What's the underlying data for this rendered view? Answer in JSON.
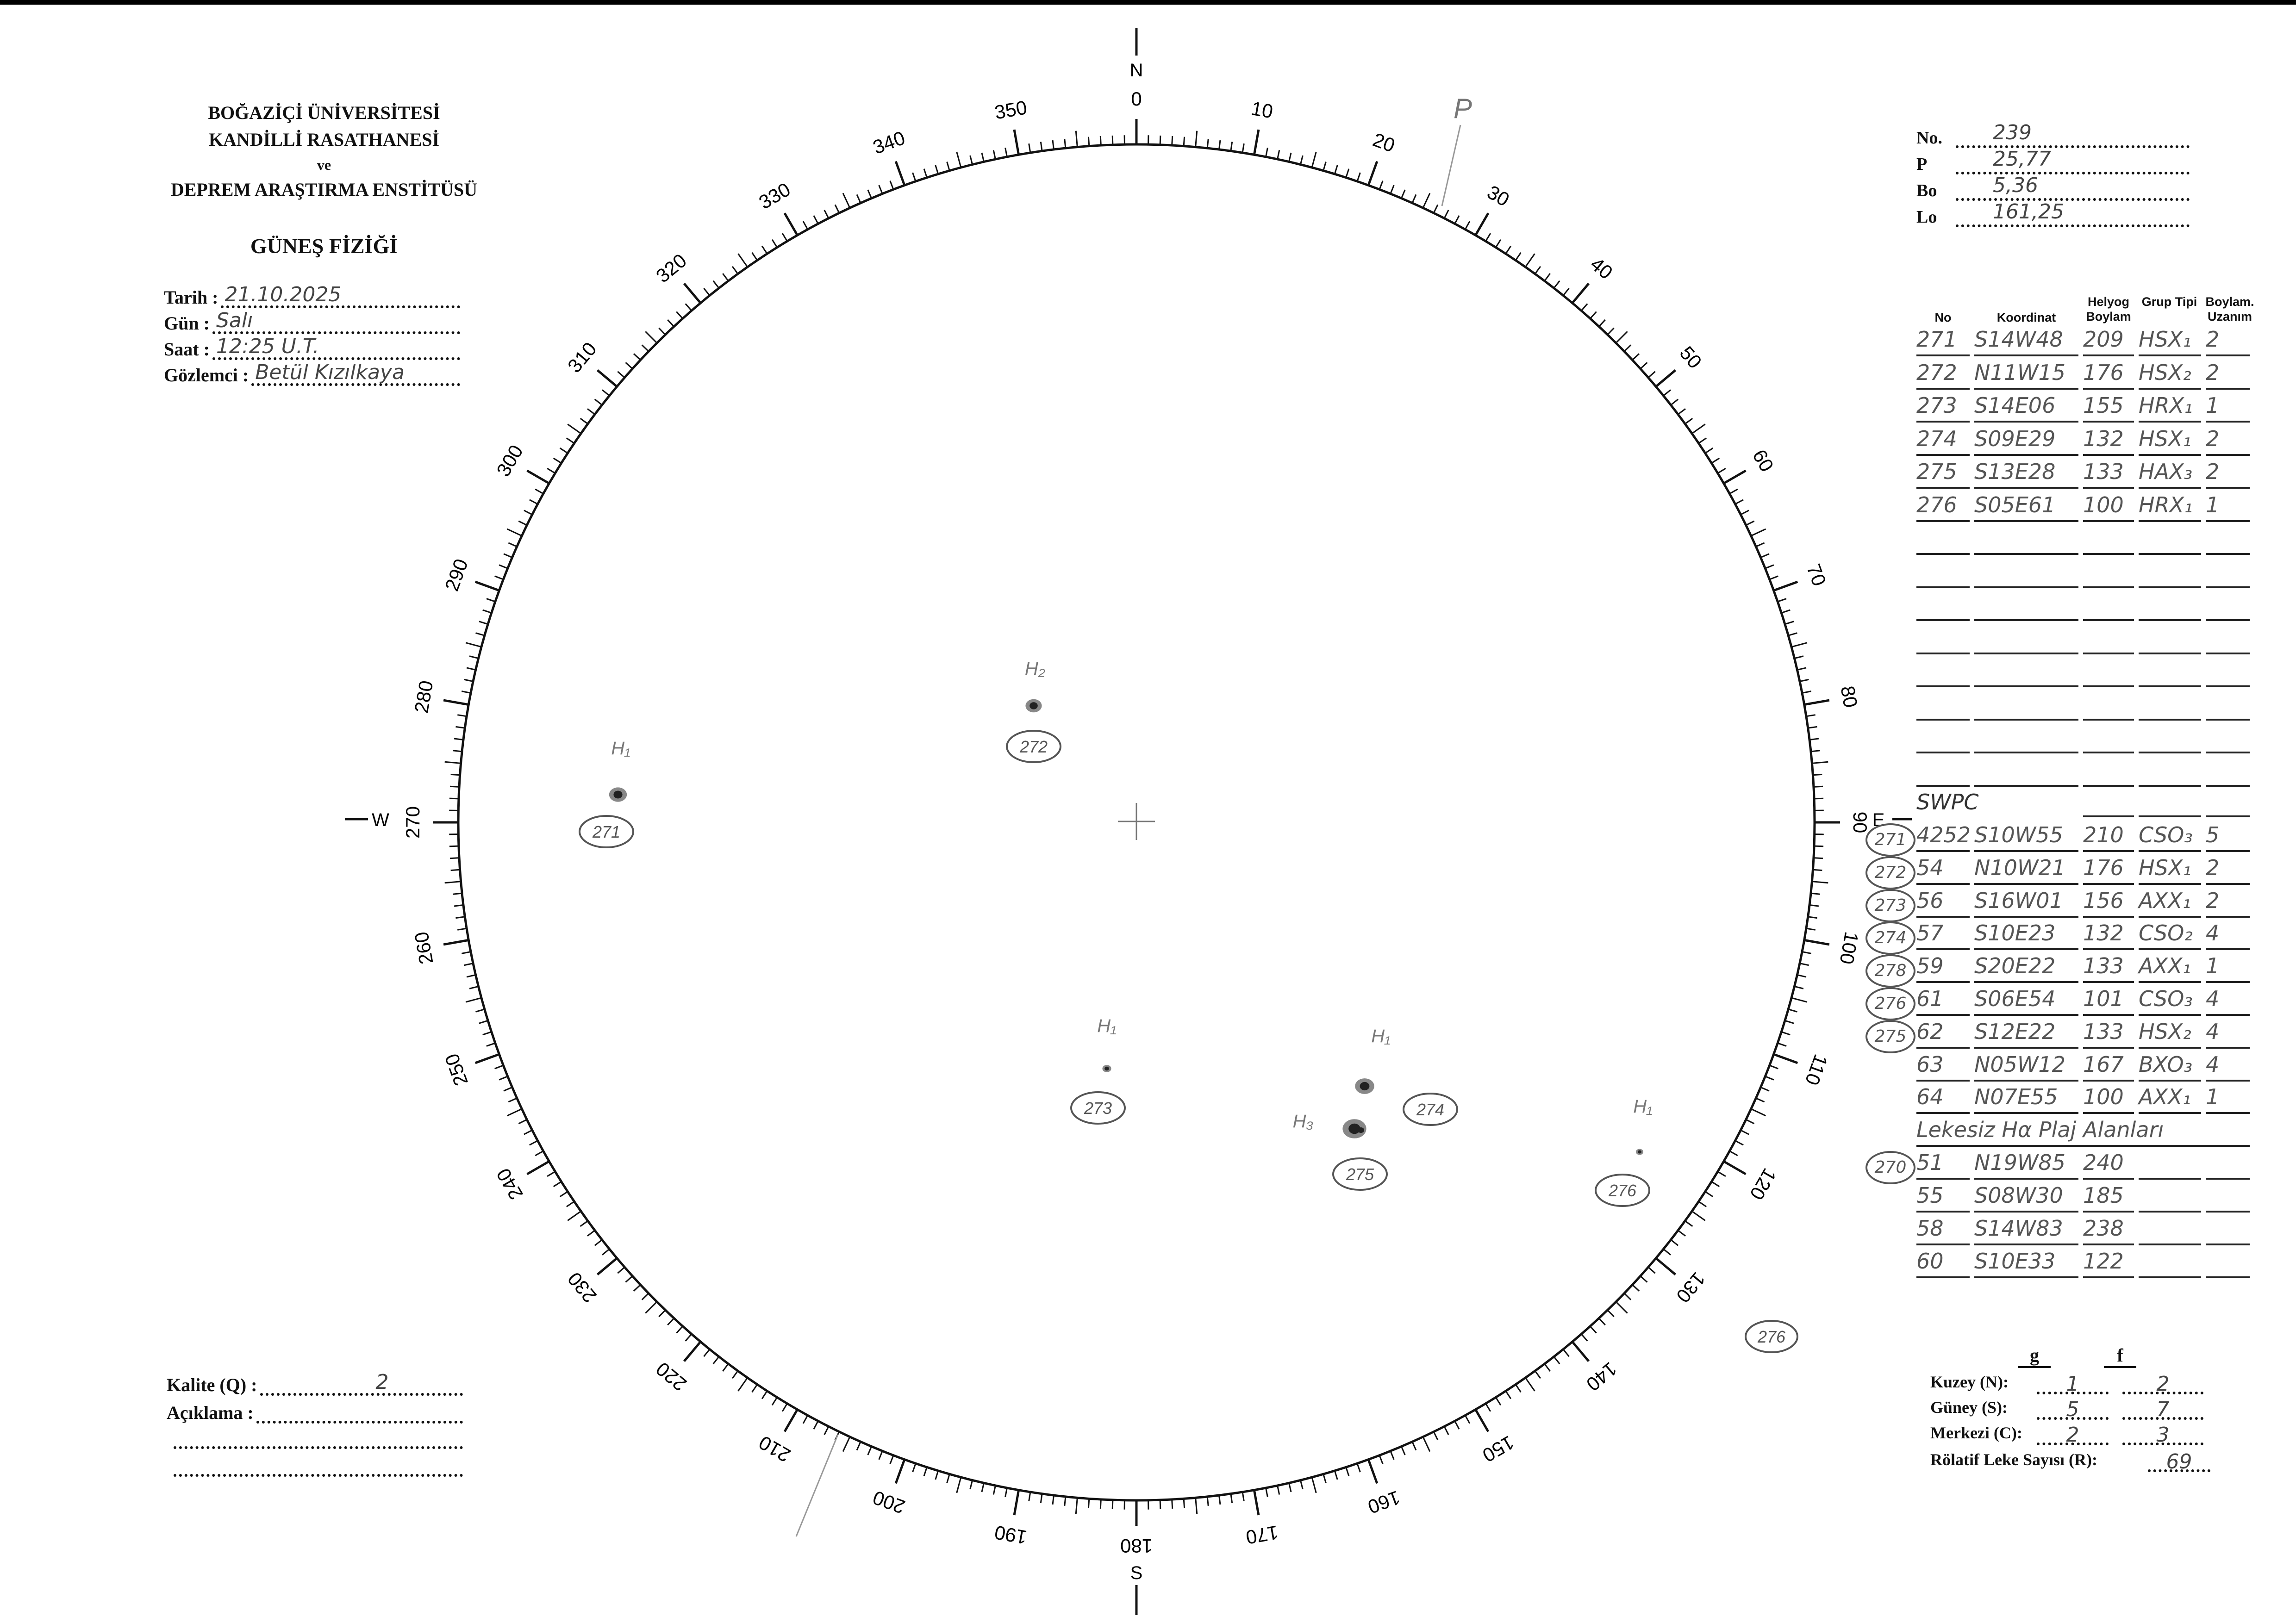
{
  "header": {
    "institution": [
      "BOĞAZİÇİ ÜNİVERSİTESİ",
      "KANDİLLİ RASATHANESİ",
      "ve",
      "DEPREM ARAŞTIRMA ENSTİTÜSÜ"
    ],
    "title": "GÜNEŞ FİZİĞİ"
  },
  "observation": [
    {
      "label": "Tarih :",
      "value": "21.10.2025"
    },
    {
      "label": "Gün :",
      "value": "Salı"
    },
    {
      "label": "Saat :",
      "value": "12:25 U.T."
    },
    {
      "label": "Gözlemci :",
      "value": "Betül Kızılkaya"
    }
  ],
  "ephemeris": [
    {
      "label": "No.",
      "value": "239"
    },
    {
      "label": "P",
      "value": "25,77"
    },
    {
      "label": "Bo",
      "value": "5,36"
    },
    {
      "label": "Lo",
      "value": "161,25"
    }
  ],
  "groups_table": {
    "headers": [
      "No",
      "Koordinat",
      "Helyog Boylam",
      "Grup Tipi",
      "Boylam. Uzanım"
    ],
    "rows": [
      [
        "271",
        "S14W48",
        "209",
        "HSX₁",
        "2"
      ],
      [
        "272",
        "N11W15",
        "176",
        "HSX₂",
        "2"
      ],
      [
        "273",
        "S14E06",
        "155",
        "HRX₁",
        "1"
      ],
      [
        "274",
        "S09E29",
        "132",
        "HSX₁",
        "2"
      ],
      [
        "275",
        "S13E28",
        "133",
        "HAX₃",
        "2"
      ],
      [
        "276",
        "S05E61",
        "100",
        "HRX₁",
        "1"
      ]
    ]
  },
  "swpc": {
    "label": "SWPC",
    "rows": [
      {
        "circled": "271",
        "cells": [
          "4252",
          "S10W55",
          "210",
          "CSO₃",
          "5"
        ]
      },
      {
        "circled": "272",
        "cells": [
          "54",
          "N10W21",
          "176",
          "HSX₁",
          "2"
        ]
      },
      {
        "circled": "273",
        "cells": [
          "56",
          "S16W01",
          "156",
          "AXX₁",
          "2"
        ]
      },
      {
        "circled": "274",
        "cells": [
          "57",
          "S10E23",
          "132",
          "CSO₂",
          "4"
        ]
      },
      {
        "circled": "278",
        "cells": [
          "59",
          "S20E22",
          "133",
          "AXX₁",
          "1"
        ]
      },
      {
        "circled": "276",
        "cells": [
          "61",
          "S06E54",
          "101",
          "CSO₃",
          "4"
        ]
      },
      {
        "circled": "275",
        "cells": [
          "62",
          "S12E22",
          "133",
          "HSX₂",
          "4"
        ]
      },
      {
        "circled": "",
        "cells": [
          "63",
          "N05W12",
          "167",
          "BXO₃",
          "4"
        ]
      },
      {
        "circled": "",
        "cells": [
          "64",
          "N07E55",
          "100",
          "AXX₁",
          "1"
        ]
      }
    ],
    "plage_label": "Lekesiz Hα Plaj Alanları",
    "plage_rows": [
      {
        "circled": "270",
        "cells": [
          "51",
          "N19W85",
          "240",
          "",
          ""
        ]
      },
      {
        "circled": "",
        "cells": [
          "55",
          "S08W30",
          "185",
          "",
          ""
        ]
      },
      {
        "circled": "",
        "cells": [
          "58",
          "S14W83",
          "238",
          "",
          ""
        ]
      },
      {
        "circled": "",
        "cells": [
          "60",
          "S10E33",
          "122",
          "",
          ""
        ]
      }
    ]
  },
  "counts": {
    "col_headers": [
      "g",
      "f"
    ],
    "rows": [
      {
        "label": "Kuzey (N):",
        "g": "1",
        "f": "2"
      },
      {
        "label": "Güney (S):",
        "g": "5",
        "f": "7"
      },
      {
        "label": "Merkezi (C):",
        "g": "2",
        "f": "3"
      }
    ],
    "relative_label": "Rölatif Leke Sayısı (R):",
    "relative_value": "69"
  },
  "quality": {
    "label": "Kalite (Q) :",
    "value": "2",
    "comment_label": "Açıklama :",
    "comment_value": ""
  },
  "disc": {
    "compass": {
      "N": "N",
      "S": "S",
      "E": "E",
      "W": "W"
    },
    "degree_labels": [
      "0",
      "10",
      "20",
      "30",
      "40",
      "50",
      "60",
      "70",
      "80",
      "90",
      "100",
      "110",
      "120",
      "130",
      "140",
      "150",
      "160",
      "170",
      "180",
      "190",
      "200",
      "210",
      "220",
      "230",
      "240",
      "250",
      "260",
      "270",
      "280",
      "290",
      "300",
      "310",
      "320",
      "330",
      "340",
      "350"
    ],
    "p_mark": "P",
    "spots": [
      {
        "group": "271",
        "class_label": "H₁"
      },
      {
        "group": "272",
        "class_label": "H₂"
      },
      {
        "group": "273",
        "class_label": "H₁"
      },
      {
        "group": "274",
        "class_label": "H₁"
      },
      {
        "group": "275",
        "class_label": "H₃"
      },
      {
        "group": "276",
        "class_label": "H₁"
      }
    ],
    "extra_circled": "276",
    "ink_color": "#555555"
  }
}
